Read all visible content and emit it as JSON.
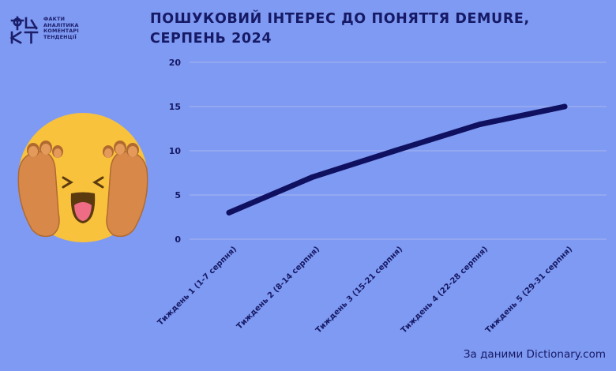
{
  "brand": {
    "lines": [
      "ФАКТИ",
      "АНАЛІТИКА",
      "КОМЕНТАРІ",
      "ТЕНДЕНЦІЇ"
    ]
  },
  "colors": {
    "background": "#7f9af2",
    "line": "#0f1160",
    "grid": "#a9b6f0",
    "text": "#161a66",
    "emoji_face": "#f9c23c",
    "emoji_hands": "#d8894a"
  },
  "decoration": {
    "emoji_icon": "face-with-hands-on-cheeks-emoji"
  },
  "chart_data": {
    "type": "line",
    "title": "Пошуковий інтерес до поняття demure, серпень 2024",
    "xlabel": "",
    "ylabel": "",
    "categories": [
      "Тиждень 1 (1-7 серпня)",
      "Тиждень 2 (8-14 серпня)",
      "Тиждень 3 (15-21 серпня)",
      "Тиждень 4 (22-28 серпня)",
      "Тиждень 5 (29-31 серпня)"
    ],
    "series": [
      {
        "values": [
          3,
          7,
          10,
          13,
          15
        ]
      }
    ],
    "ylim": [
      0,
      20
    ],
    "yticks": [
      0,
      5,
      10,
      15,
      20
    ],
    "grid": true,
    "legend": "none"
  },
  "source": "За даними Dictionary.com"
}
